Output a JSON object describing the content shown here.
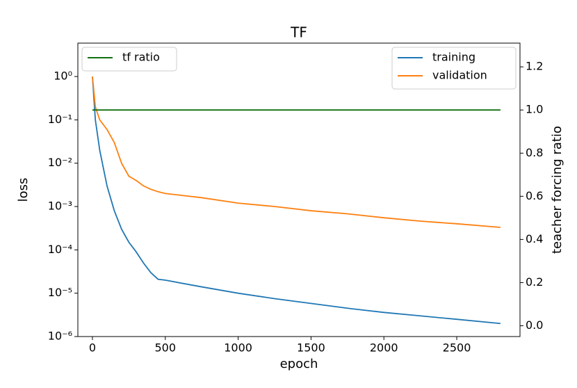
{
  "chart_data": {
    "type": "line",
    "title": "TF",
    "xlabel": "epoch",
    "ylabel": "loss",
    "y2label": "teacher forcing ratio",
    "x": [
      0,
      20,
      50,
      100,
      150,
      200,
      250,
      300,
      350,
      400,
      450,
      500,
      750,
      1000,
      1250,
      1500,
      1750,
      2000,
      2250,
      2500,
      2800
    ],
    "series": [
      {
        "name": "training",
        "color": "#1f77b4",
        "legend": "upper right",
        "values": [
          1.0,
          0.1,
          0.02,
          0.003,
          0.0008,
          0.0003,
          0.00015,
          9e-05,
          5e-05,
          3e-05,
          2.1e-05,
          2e-05,
          1.4e-05,
          1e-05,
          7.5e-06,
          5.8e-06,
          4.5e-06,
          3.6e-06,
          3e-06,
          2.5e-06,
          2e-06
        ]
      },
      {
        "name": "validation",
        "color": "#ff7f0e",
        "legend": "upper right",
        "values": [
          1.0,
          0.2,
          0.1,
          0.06,
          0.03,
          0.01,
          0.005,
          0.004,
          0.003,
          0.0025,
          0.0022,
          0.002,
          0.0016,
          0.0012,
          0.001,
          0.0008,
          0.00068,
          0.00055,
          0.00046,
          0.0004,
          0.00033
        ]
      },
      {
        "name": "tf ratio",
        "color": "#107010",
        "legend": "upper left",
        "axis": "y2",
        "x": [
          0,
          2800
        ],
        "values": [
          1,
          1
        ]
      }
    ],
    "xlim": [
      -100,
      2934
    ],
    "xticks": [
      0,
      500,
      1000,
      1500,
      2000,
      2500
    ],
    "ylim": [
      1e-06,
      5.9
    ],
    "yscale": "log",
    "yticks": [
      {
        "value": 1e-06,
        "label": "10⁻⁶"
      },
      {
        "value": 1e-05,
        "label": "10⁻⁵"
      },
      {
        "value": 0.0001,
        "label": "10⁻⁴"
      },
      {
        "value": 0.001,
        "label": "10⁻³"
      },
      {
        "value": 0.01,
        "label": "10⁻²"
      },
      {
        "value": 0.1,
        "label": "10⁻¹"
      },
      {
        "value": 1,
        "label": "10⁰"
      }
    ],
    "y2lim": [
      -0.05,
      1.31
    ],
    "y2ticks": [
      {
        "value": 0,
        "label": "0.0"
      },
      0.2,
      0.4,
      0.6,
      0.8,
      {
        "value": 1,
        "label": "1.0"
      },
      1.2
    ]
  }
}
